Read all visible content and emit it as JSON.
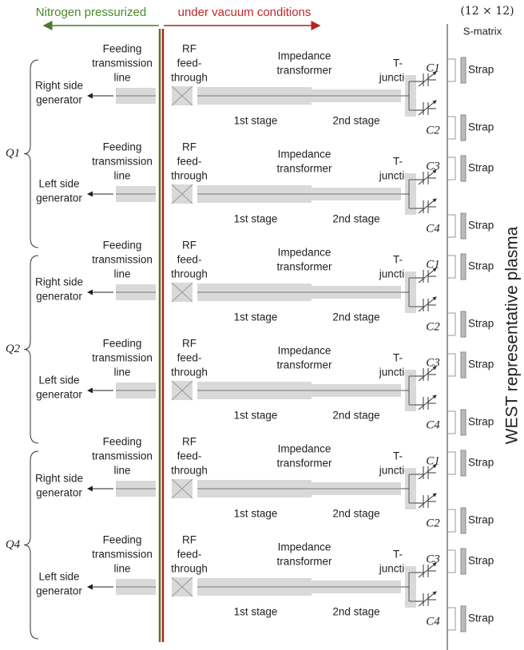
{
  "header": {
    "left": "Nitrogen pressurized",
    "right": "under vacuum conditions",
    "matrix_size": "(12 × 12)",
    "matrix": "S-matrix",
    "plasma": "WEST representative plasma"
  },
  "groups": [
    "Q1",
    "Q2",
    "Q4"
  ],
  "rows": [
    {
      "feeding": [
        "Feeding",
        "transmission",
        "line"
      ],
      "rf": [
        "RF",
        "feed-",
        "through"
      ],
      "impedance": [
        "Impedance",
        "transformer"
      ],
      "stage1": "1st stage",
      "stage2": "2nd stage",
      "tjunction": [
        "T-",
        "junction"
      ],
      "generator": [
        "Right side",
        "generator"
      ],
      "cap_top": "C1",
      "cap_bottom": "C2",
      "strap_top": "Strap",
      "strap_bottom": "Strap"
    },
    {
      "feeding": [
        "Feeding",
        "transmission",
        "line"
      ],
      "rf": [
        "RF",
        "feed-",
        "through"
      ],
      "impedance": [
        "Impedance",
        "transformer"
      ],
      "stage1": "1st stage",
      "stage2": "2nd stage",
      "tjunction": [
        "T-",
        "junction"
      ],
      "generator": [
        "Left side",
        "generator"
      ],
      "cap_top": "C3",
      "cap_bottom": "C4",
      "strap_top": "Strap",
      "strap_bottom": "Strap"
    },
    {
      "feeding": [
        "Feeding",
        "transmission",
        "line"
      ],
      "rf": [
        "RF",
        "feed-",
        "through"
      ],
      "impedance": [
        "Impedance",
        "transformer"
      ],
      "stage1": "1st stage",
      "stage2": "2nd stage",
      "tjunction": [
        "T-",
        "junction"
      ],
      "generator": [
        "Right side",
        "generator"
      ],
      "cap_top": "C1",
      "cap_bottom": "C2",
      "strap_top": "Strap",
      "strap_bottom": "Strap"
    },
    {
      "feeding": [
        "Feeding",
        "transmission",
        "line"
      ],
      "rf": [
        "RF",
        "feed-",
        "through"
      ],
      "impedance": [
        "Impedance",
        "transformer"
      ],
      "stage1": "1st stage",
      "stage2": "2nd stage",
      "tjunction": [
        "T-",
        "junction"
      ],
      "generator": [
        "Left side",
        "generator"
      ],
      "cap_top": "C3",
      "cap_bottom": "C4",
      "strap_top": "Strap",
      "strap_bottom": "Strap"
    },
    {
      "feeding": [
        "Feeding",
        "transmission",
        "line"
      ],
      "rf": [
        "RF",
        "feed-",
        "through"
      ],
      "impedance": [
        "Impedance",
        "transformer"
      ],
      "stage1": "1st stage",
      "stage2": "2nd stage",
      "tjunction": [
        "T-",
        "junction"
      ],
      "generator": [
        "Right side",
        "generator"
      ],
      "cap_top": "C1",
      "cap_bottom": "C2",
      "strap_top": "Strap",
      "strap_bottom": "Strap"
    },
    {
      "feeding": [
        "Feeding",
        "transmission",
        "line"
      ],
      "rf": [
        "RF",
        "feed-",
        "through"
      ],
      "impedance": [
        "Impedance",
        "transformer"
      ],
      "stage1": "1st stage",
      "stage2": "2nd stage",
      "tjunction": [
        "T-",
        "junction"
      ],
      "generator": [
        "Left side",
        "generator"
      ],
      "cap_top": "C3",
      "cap_bottom": "C4",
      "strap_top": "Strap",
      "strap_bottom": "Strap"
    }
  ]
}
